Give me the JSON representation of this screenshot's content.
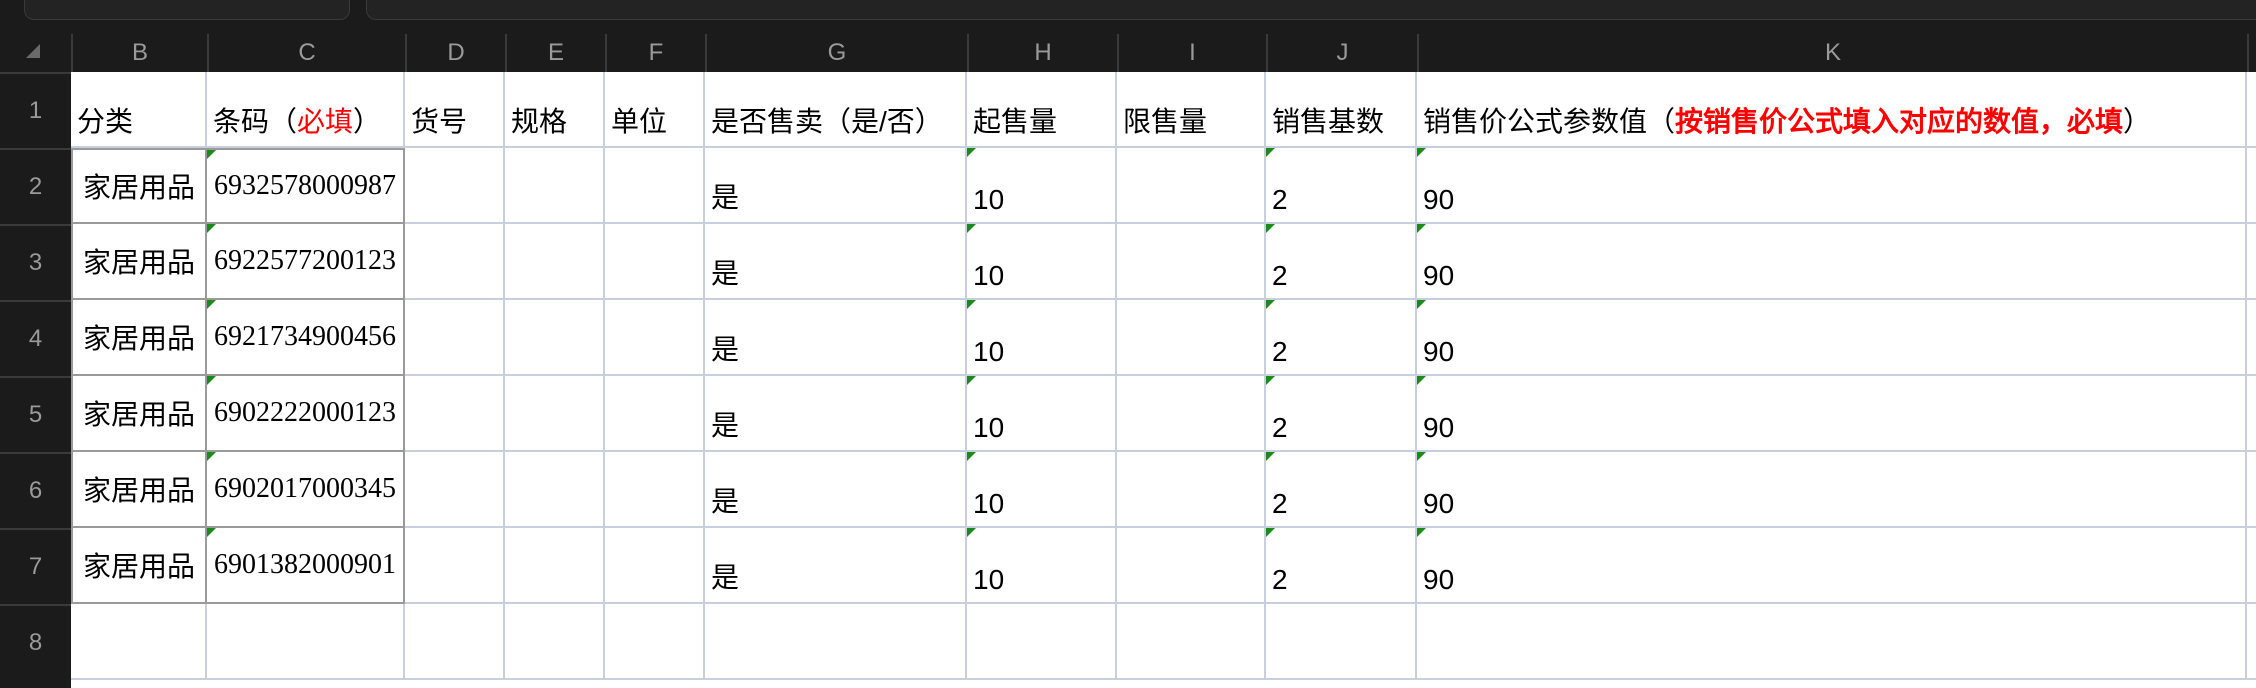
{
  "columns": [
    "B",
    "C",
    "D",
    "E",
    "F",
    "G",
    "H",
    "I",
    "J",
    "K"
  ],
  "rows": [
    "1",
    "2",
    "3",
    "4",
    "5",
    "6",
    "7",
    "8"
  ],
  "header": {
    "B": "分类",
    "C_prefix": "条码（",
    "C_required": "必填",
    "C_suffix": "）",
    "D": "货号",
    "E": "规格",
    "F": "单位",
    "G": "是否售卖（是/否）",
    "H": "起售量",
    "I": "限售量",
    "J": "销售基数",
    "K_prefix": "销售价公式参数值（",
    "K_note": "按销售价公式填入对应的数值，必填",
    "K_suffix": "）"
  },
  "data_rows": [
    {
      "category": "家居用品",
      "barcode": "6932578000987",
      "for_sale": "是",
      "min_qty": "10",
      "base": "2",
      "param": "90"
    },
    {
      "category": "家居用品",
      "barcode": "6922577200123",
      "for_sale": "是",
      "min_qty": "10",
      "base": "2",
      "param": "90"
    },
    {
      "category": "家居用品",
      "barcode": "6921734900456",
      "for_sale": "是",
      "min_qty": "10",
      "base": "2",
      "param": "90"
    },
    {
      "category": "家居用品",
      "barcode": "6902222000123",
      "for_sale": "是",
      "min_qty": "10",
      "base": "2",
      "param": "90"
    },
    {
      "category": "家居用品",
      "barcode": "6902017000345",
      "for_sale": "是",
      "min_qty": "10",
      "base": "2",
      "param": "90"
    },
    {
      "category": "家居用品",
      "barcode": "6901382000901",
      "for_sale": "是",
      "min_qty": "10",
      "base": "2",
      "param": "90"
    }
  ],
  "colors": {
    "required_text": "#ff0000",
    "text_number_marker": "#1a8a1a",
    "grid_line": "#c8cedd"
  }
}
